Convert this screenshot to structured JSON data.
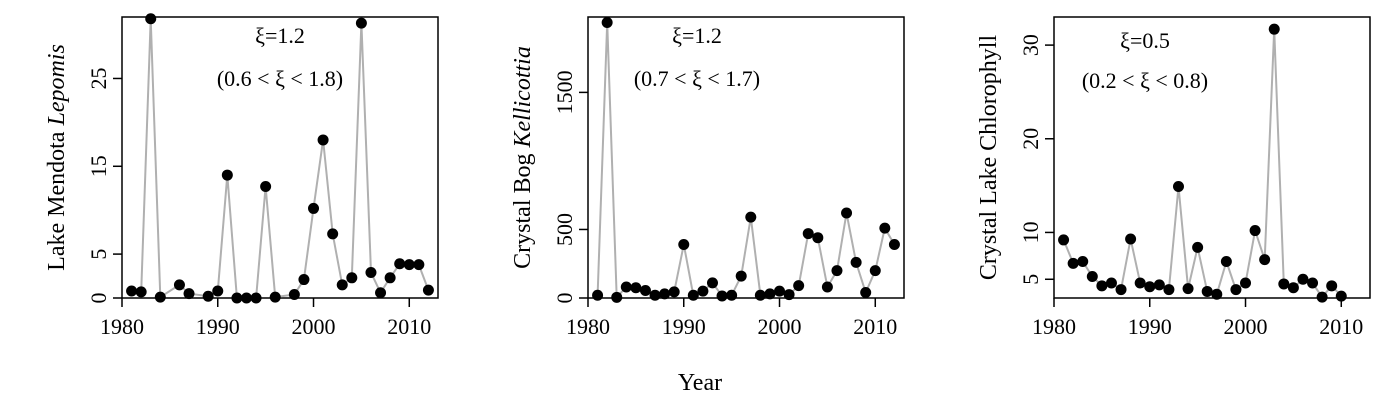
{
  "x_axis_label": "Year",
  "colors": {
    "line": "#b0b0b0",
    "point": "#000000",
    "axis": "#000000"
  },
  "chart_data": [
    {
      "type": "line",
      "ylabel_prefix": "Lake Mendota ",
      "ylabel_species": "Lepomis",
      "annotation_xi": "ξ=1.2",
      "annotation_ci": "(0.6 < ξ < 1.8)",
      "xlim": [
        1980,
        2013
      ],
      "ylim": [
        0,
        32
      ],
      "xticks": [
        1980,
        1990,
        2000,
        2010
      ],
      "yticks": [
        0,
        5,
        15,
        25
      ],
      "x": [
        1981,
        1982,
        1983,
        1984,
        1986,
        1987,
        1989,
        1990,
        1991,
        1992,
        1993,
        1994,
        1995,
        1996,
        1998,
        1999,
        2000,
        2001,
        2002,
        2003,
        2004,
        2005,
        2006,
        2007,
        2008,
        2009,
        2010,
        2011,
        2012
      ],
      "y": [
        0.8,
        0.7,
        31.8,
        0.1,
        1.5,
        0.5,
        0.2,
        0.8,
        14.0,
        0.0,
        0.0,
        0.0,
        12.7,
        0.1,
        0.4,
        2.1,
        10.2,
        18.0,
        7.3,
        1.5,
        2.3,
        31.3,
        2.9,
        0.6,
        2.3,
        3.9,
        3.8,
        3.8,
        0.9
      ]
    },
    {
      "type": "line",
      "ylabel_prefix": "Crystal Bog ",
      "ylabel_species": "Kellicottia",
      "annotation_xi": "ξ=1.2",
      "annotation_ci": "(0.7 < ξ < 1.7)",
      "xlim": [
        1980,
        2013
      ],
      "ylim": [
        0,
        2050
      ],
      "xticks": [
        1980,
        1990,
        2000,
        2010
      ],
      "yticks": [
        0,
        500,
        1500
      ],
      "x": [
        1981,
        1982,
        1983,
        1984,
        1985,
        1986,
        1987,
        1988,
        1989,
        1990,
        1991,
        1992,
        1993,
        1994,
        1995,
        1996,
        1997,
        1998,
        1999,
        2000,
        2001,
        2002,
        2003,
        2004,
        2005,
        2006,
        2007,
        2008,
        2009,
        2010,
        2011,
        2012
      ],
      "y": [
        20,
        2010,
        5,
        80,
        75,
        55,
        20,
        30,
        45,
        390,
        20,
        50,
        110,
        15,
        20,
        160,
        590,
        20,
        30,
        50,
        25,
        90,
        470,
        440,
        80,
        200,
        620,
        260,
        40,
        200,
        510,
        390
      ]
    },
    {
      "type": "line",
      "ylabel_prefix": "Crystal Lake Chlorophyll",
      "ylabel_species": "",
      "annotation_xi": "ξ=0.5",
      "annotation_ci": "(0.2 < ξ < 0.8)",
      "xlim": [
        1980,
        2013
      ],
      "ylim": [
        3,
        33
      ],
      "xticks": [
        1980,
        1990,
        2000,
        2010
      ],
      "yticks": [
        5,
        10,
        20,
        30
      ],
      "x": [
        1981,
        1982,
        1983,
        1984,
        1985,
        1986,
        1987,
        1988,
        1989,
        1990,
        1991,
        1992,
        1993,
        1994,
        1995,
        1996,
        1997,
        1998,
        1999,
        2000,
        2001,
        2002,
        2003,
        2004,
        2005,
        2006,
        2007,
        2008,
        2009,
        2010
      ],
      "y": [
        9.2,
        6.7,
        6.9,
        5.3,
        4.3,
        4.6,
        3.9,
        9.3,
        4.6,
        4.2,
        4.4,
        3.9,
        14.9,
        4.0,
        8.4,
        3.7,
        3.4,
        6.9,
        3.9,
        4.6,
        10.2,
        7.1,
        31.7,
        4.5,
        4.1,
        5.0,
        4.6,
        3.1,
        4.3,
        3.2
      ]
    }
  ]
}
